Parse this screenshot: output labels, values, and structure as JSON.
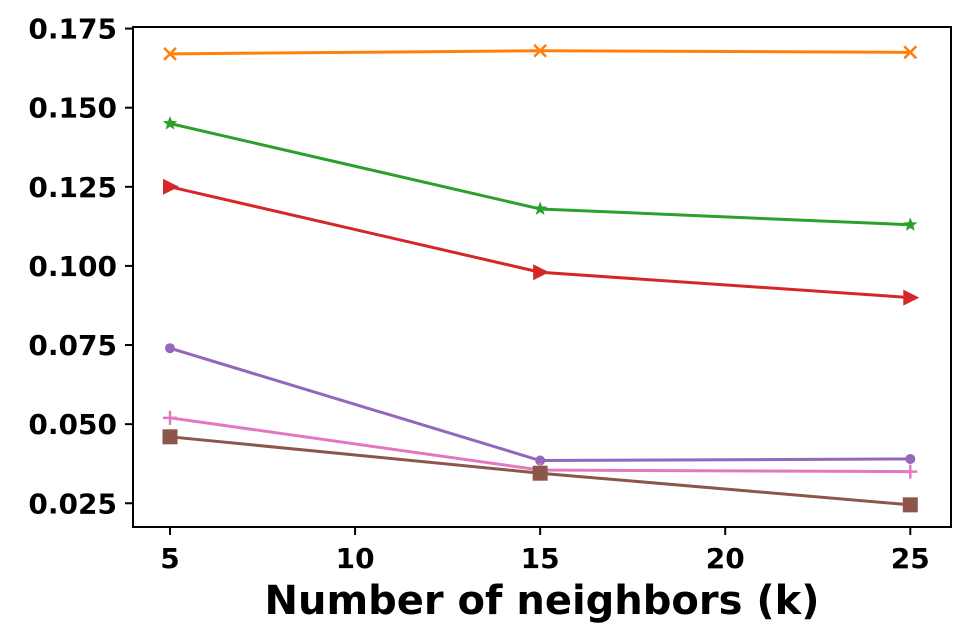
{
  "chart_data": {
    "type": "line",
    "title": "",
    "xlabel": "Number of neighbors (k)",
    "ylabel": "",
    "x": [
      5,
      15,
      25
    ],
    "xlim": [
      4,
      26.1
    ],
    "ylim": [
      0.0175,
      0.1755
    ],
    "xticks": [
      5,
      10,
      15,
      20,
      25
    ],
    "xtick_labels": [
      "5",
      "10",
      "15",
      "20",
      "25"
    ],
    "yticks": [
      0.025,
      0.05,
      0.075,
      0.1,
      0.125,
      0.15,
      0.175
    ],
    "ytick_labels": [
      "0.025",
      "0.050",
      "0.075",
      "0.100",
      "0.125",
      "0.150",
      "0.175"
    ],
    "grid": false,
    "legend": "none",
    "series": [
      {
        "name": "series-orange",
        "color": "#ff7f0e",
        "marker": "x",
        "values": [
          0.167,
          0.168,
          0.1675
        ]
      },
      {
        "name": "series-green",
        "color": "#2ca02c",
        "marker": "star",
        "values": [
          0.145,
          0.118,
          0.113
        ]
      },
      {
        "name": "series-red",
        "color": "#d62728",
        "marker": "triangle-right",
        "values": [
          0.125,
          0.098,
          0.09
        ]
      },
      {
        "name": "series-purple",
        "color": "#9467bd",
        "marker": "circle",
        "values": [
          0.074,
          0.0385,
          0.039
        ]
      },
      {
        "name": "series-pink",
        "color": "#e377c2",
        "marker": "plus",
        "values": [
          0.052,
          0.0355,
          0.035
        ]
      },
      {
        "name": "series-brown",
        "color": "#8c564b",
        "marker": "square",
        "values": [
          0.046,
          0.0345,
          0.0245
        ]
      }
    ]
  }
}
